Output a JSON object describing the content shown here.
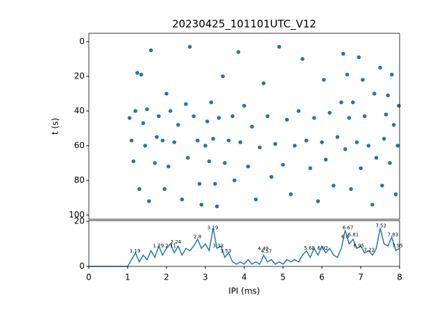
{
  "chart_data": [
    {
      "type": "scatter",
      "title": "20230425_101101UTC_V12",
      "y_label": "t (s)",
      "color": "#1f77b4",
      "xlim": [
        0,
        8
      ],
      "ylim": [
        -4.8,
        102.4
      ],
      "y_inverted": true,
      "yticks": [
        0,
        20,
        40,
        60,
        80,
        100
      ],
      "x": [
        1.05,
        1.1,
        1.15,
        1.2,
        1.25,
        1.3,
        1.35,
        1.4,
        1.45,
        1.5,
        1.55,
        1.6,
        1.7,
        1.75,
        1.8,
        1.9,
        1.95,
        2.0,
        2.05,
        2.1,
        2.2,
        2.3,
        2.4,
        2.5,
        2.55,
        2.6,
        2.7,
        2.8,
        2.85,
        2.9,
        3.0,
        3.05,
        3.1,
        3.15,
        3.2,
        3.25,
        3.3,
        3.35,
        3.45,
        3.5,
        3.6,
        3.7,
        3.75,
        3.85,
        3.9,
        4.0,
        4.1,
        4.2,
        4.3,
        4.4,
        4.5,
        4.6,
        4.7,
        4.8,
        4.9,
        5.0,
        5.1,
        5.2,
        5.3,
        5.4,
        5.5,
        5.6,
        5.7,
        5.8,
        5.9,
        6.0,
        6.05,
        6.1,
        6.2,
        6.3,
        6.4,
        6.5,
        6.55,
        6.6,
        6.65,
        6.7,
        6.75,
        6.8,
        6.9,
        6.95,
        7.0,
        7.05,
        7.1,
        7.2,
        7.3,
        7.35,
        7.4,
        7.5,
        7.55,
        7.6,
        7.65,
        7.7,
        7.75,
        7.8,
        7.85,
        7.9,
        7.95,
        7.98
      ],
      "y": [
        44,
        57,
        69,
        40,
        18,
        85,
        19,
        47,
        60,
        39,
        92,
        5,
        70,
        55,
        43,
        57,
        85,
        30,
        72,
        40,
        58,
        48,
        91,
        36,
        67,
        3,
        43,
        57,
        82,
        94,
        60,
        46,
        69,
        35,
        56,
        82,
        95,
        44,
        20,
        70,
        57,
        43,
        80,
        6,
        58,
        37,
        72,
        49,
        91,
        61,
        24,
        43,
        78,
        59,
        3,
        71,
        45,
        88,
        60,
        40,
        10,
        57,
        73,
        44,
        92,
        58,
        22,
        68,
        41,
        83,
        55,
        35,
        7,
        62,
        19,
        44,
        85,
        35,
        58,
        9,
        73,
        22,
        43,
        60,
        94,
        30,
        67,
        15,
        83,
        56,
        42,
        31,
        70,
        19,
        48,
        88,
        60,
        37
      ]
    },
    {
      "type": "line",
      "x_label": "IPI (ms)",
      "color": "#1f77b4",
      "xlim": [
        0,
        8
      ],
      "ylim": [
        0,
        20.3
      ],
      "xticks": [
        0,
        1,
        2,
        3,
        4,
        5,
        6,
        7,
        8
      ],
      "yticks": [
        0,
        20
      ],
      "x": [
        0,
        0.1,
        0.2,
        0.3,
        0.4,
        0.5,
        0.6,
        0.7,
        0.8,
        0.9,
        1.0,
        1.1,
        1.2,
        1.3,
        1.4,
        1.5,
        1.6,
        1.7,
        1.8,
        1.9,
        2.0,
        2.1,
        2.2,
        2.3,
        2.4,
        2.5,
        2.6,
        2.7,
        2.8,
        2.9,
        3.0,
        3.1,
        3.2,
        3.3,
        3.4,
        3.5,
        3.6,
        3.7,
        3.8,
        3.9,
        4.0,
        4.1,
        4.2,
        4.3,
        4.4,
        4.5,
        4.6,
        4.7,
        4.8,
        4.9,
        5.0,
        5.1,
        5.2,
        5.3,
        5.4,
        5.5,
        5.6,
        5.7,
        5.8,
        5.9,
        6.0,
        6.1,
        6.2,
        6.3,
        6.4,
        6.5,
        6.6,
        6.7,
        6.8,
        6.9,
        7.0,
        7.1,
        7.2,
        7.3,
        7.4,
        7.5,
        7.6,
        7.7,
        7.8,
        7.9,
        8.0
      ],
      "values": [
        0,
        0,
        0,
        0,
        0,
        0,
        0,
        0,
        0,
        0,
        0,
        3,
        6,
        2,
        5,
        3,
        7,
        4,
        9,
        5,
        8,
        10,
        6,
        9,
        5,
        8,
        7,
        9,
        12,
        8,
        10,
        7,
        17,
        8,
        9,
        4,
        6,
        2,
        1,
        2,
        1,
        3,
        1,
        2,
        1,
        5,
        2,
        3,
        1,
        2,
        1,
        3,
        2,
        3,
        2,
        5,
        7,
        4,
        8,
        5,
        9,
        6,
        8,
        5,
        4,
        8,
        16,
        10,
        12,
        8,
        9,
        6,
        7,
        5,
        8,
        17,
        10,
        9,
        13,
        7,
        8
      ],
      "annotations": [
        {
          "x": 1.19,
          "y": 6.8,
          "text": "1.19"
        },
        {
          "x": 1.79,
          "y": 9,
          "text": "1.79"
        },
        {
          "x": 2.11,
          "y": 9,
          "text": "2.11"
        },
        {
          "x": 2.24,
          "y": 10.8,
          "text": "2.24"
        },
        {
          "x": 2.8,
          "y": 13,
          "text": "2.8"
        },
        {
          "x": 3.19,
          "y": 17,
          "text": "3.19"
        },
        {
          "x": 3.33,
          "y": 9,
          "text": "3.33"
        },
        {
          "x": 3.53,
          "y": 6.8,
          "text": "3.53"
        },
        {
          "x": 4.49,
          "y": 7.8,
          "text": "4.49"
        },
        {
          "x": 4.57,
          "y": 6.6,
          "text": "4.57"
        },
        {
          "x": 5.68,
          "y": 8,
          "text": "5.68"
        },
        {
          "x": 6.02,
          "y": 8,
          "text": "6.02"
        },
        {
          "x": 6.6,
          "y": 13,
          "text": "6.6"
        },
        {
          "x": 6.67,
          "y": 17,
          "text": "6.67"
        },
        {
          "x": 6.81,
          "y": 14,
          "text": "6.81"
        },
        {
          "x": 6.95,
          "y": 9,
          "text": "6.95"
        },
        {
          "x": 7.22,
          "y": 7.2,
          "text": "7.22"
        },
        {
          "x": 7.52,
          "y": 18,
          "text": "7.52"
        },
        {
          "x": 7.83,
          "y": 14,
          "text": "7.83"
        },
        {
          "x": 7.95,
          "y": 9,
          "text": "7.95"
        }
      ]
    }
  ]
}
